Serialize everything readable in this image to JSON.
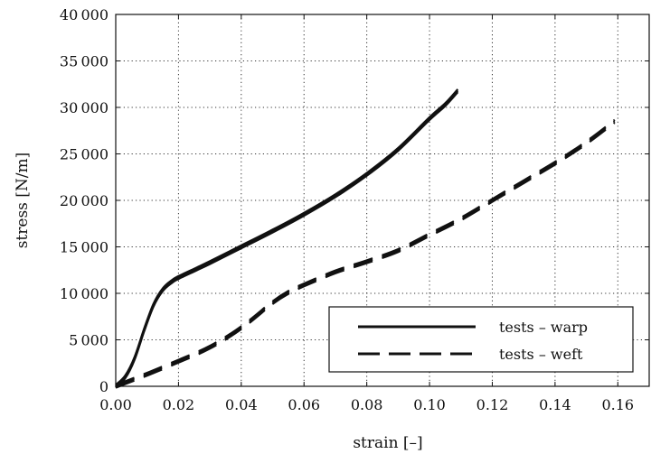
{
  "chart_data": {
    "type": "line",
    "xlabel": "strain [–]",
    "ylabel": "stress [N/m]",
    "xlim": [
      0,
      0.17
    ],
    "ylim": [
      0,
      40000
    ],
    "x_ticks": [
      0.0,
      0.02,
      0.04,
      0.06,
      0.08,
      0.1,
      0.12,
      0.14,
      0.16
    ],
    "x_tick_labels": [
      "0.00",
      "0.02",
      "0.04",
      "0.06",
      "0.08",
      "0.10",
      "0.12",
      "0.14",
      "0.16"
    ],
    "y_ticks": [
      0,
      5000,
      10000,
      15000,
      20000,
      25000,
      30000,
      35000,
      40000
    ],
    "y_tick_labels": [
      "0",
      "5 000",
      "10 000",
      "15 000",
      "20 000",
      "25 000",
      "30 000",
      "35 000",
      "40 000"
    ],
    "grid": true,
    "legend_position": "bottom-right",
    "series": [
      {
        "name": "tests – warp",
        "style": "solid",
        "color": "#111111",
        "x": [
          0,
          0.003,
          0.006,
          0.009,
          0.012,
          0.015,
          0.018,
          0.02,
          0.025,
          0.03,
          0.04,
          0.05,
          0.06,
          0.07,
          0.08,
          0.09,
          0.1,
          0.105,
          0.109
        ],
        "y": [
          0,
          1000,
          3000,
          6000,
          8700,
          10400,
          11300,
          11700,
          12500,
          13300,
          15000,
          16700,
          18500,
          20500,
          22800,
          25500,
          28800,
          30300,
          31800
        ]
      },
      {
        "name": "tests – weft",
        "style": "dashed",
        "color": "#111111",
        "x": [
          0,
          0.01,
          0.02,
          0.03,
          0.04,
          0.05,
          0.055,
          0.06,
          0.07,
          0.08,
          0.09,
          0.1,
          0.11,
          0.12,
          0.13,
          0.14,
          0.15,
          0.159
        ],
        "y": [
          0,
          1300,
          2700,
          4200,
          6300,
          9000,
          10100,
          10900,
          12300,
          13400,
          14600,
          16300,
          18000,
          20000,
          22000,
          24000,
          26200,
          28500
        ]
      }
    ]
  }
}
